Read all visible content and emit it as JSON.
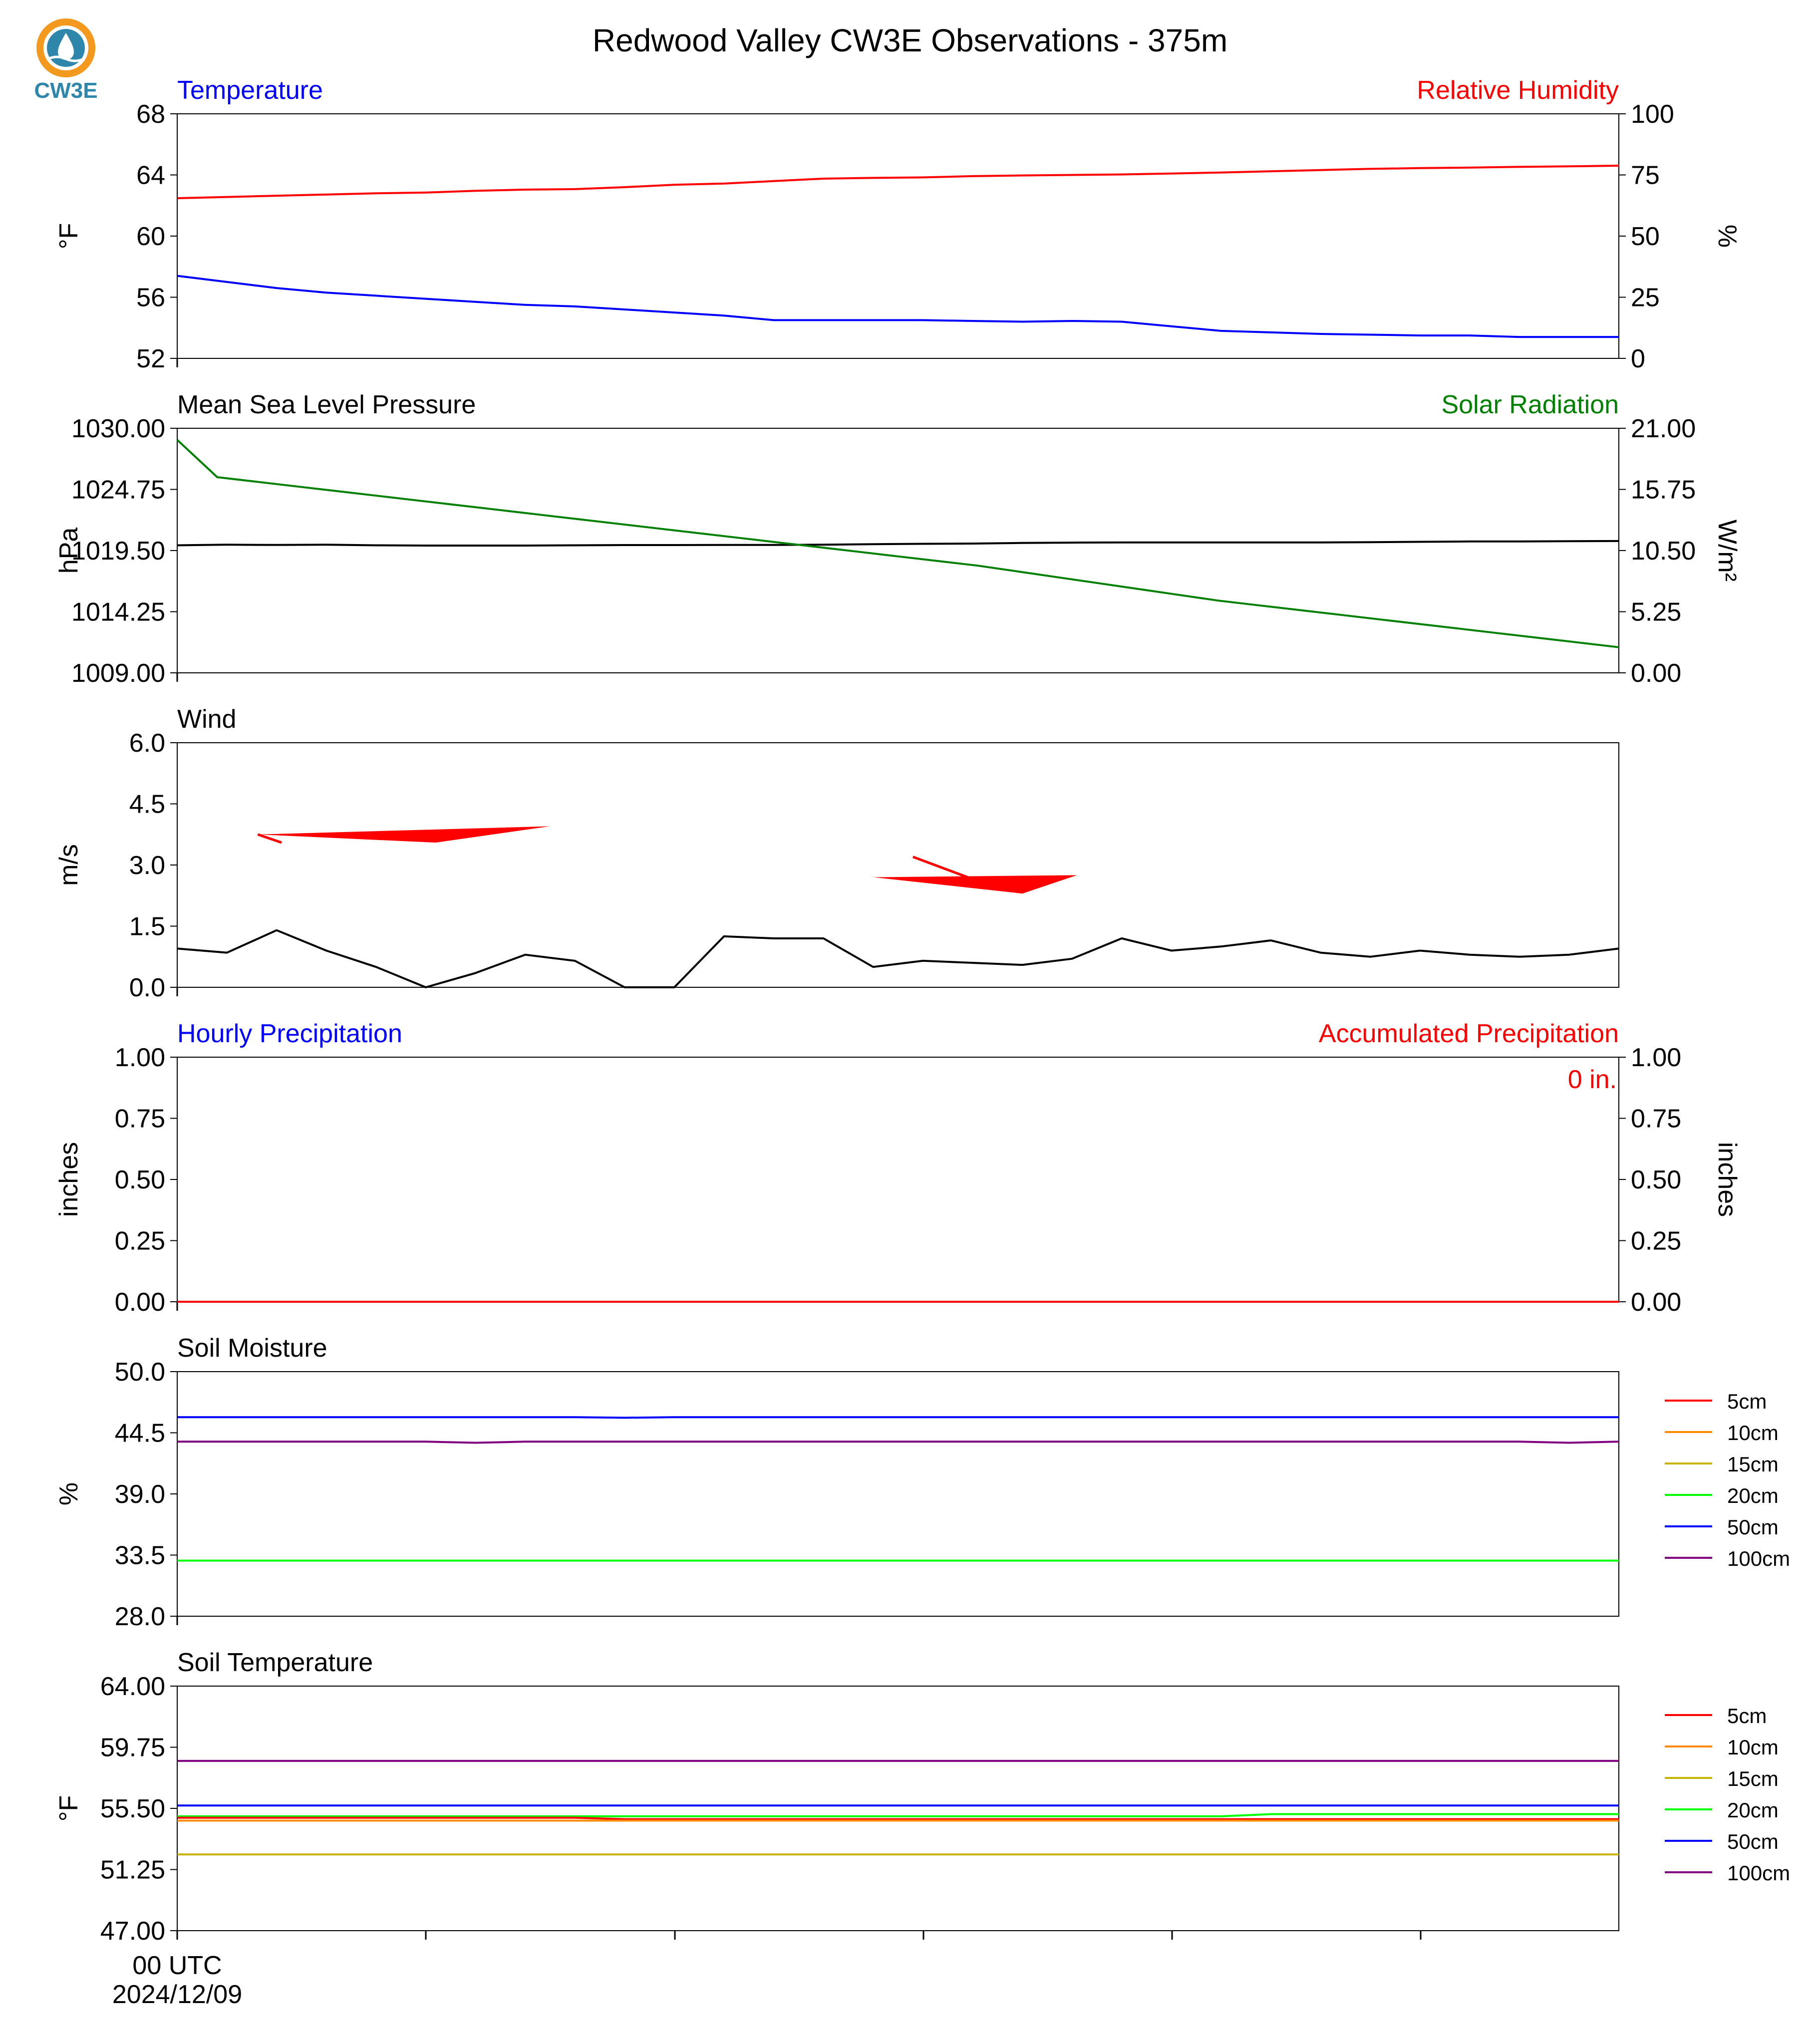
{
  "title": "Redwood Valley CW3E Observations - 375m",
  "logo": {
    "text": "CW3E",
    "icon": "cw3e-water-drop-logo",
    "colors": {
      "orange": "#F39A1E",
      "blue": "#2E86AB"
    }
  },
  "x_axis": {
    "first_tick_label_line1": "00 UTC",
    "first_tick_label_line2": "2024/12/09"
  },
  "colors": {
    "blue": "#0000FF",
    "red": "#FF0000",
    "green": "#008000",
    "black": "#000000",
    "soil": {
      "5cm": "#FF0000",
      "10cm": "#FF8C00",
      "15cm": "#C8B400",
      "20cm": "#00FF00",
      "50cm": "#0000FF",
      "100cm": "#800080"
    }
  },
  "chart_data": [
    {
      "type": "line",
      "left_title": "Temperature",
      "right_title": "Relative Humidity",
      "ylabel_left": "°F",
      "ylabel_right": "%",
      "ylim_left": [
        52,
        68
      ],
      "ylim_right": [
        0,
        100
      ],
      "yticks_left": [
        "68",
        "64",
        "60",
        "56",
        "52"
      ],
      "yticks_right": [
        "100",
        "75",
        "50",
        "25",
        "0"
      ],
      "series": [
        {
          "axis": "left",
          "color": "blue",
          "values": [
            57.4,
            57.0,
            56.6,
            56.3,
            56.1,
            55.9,
            55.7,
            55.5,
            55.4,
            55.2,
            55.0,
            54.8,
            54.5,
            54.5,
            54.5,
            54.5,
            54.45,
            54.4,
            54.45,
            54.4,
            54.1,
            53.8,
            53.7,
            53.6,
            53.55,
            53.5,
            53.5,
            53.4,
            53.4,
            53.4
          ]
        },
        {
          "axis": "right",
          "color": "red",
          "values": [
            65.5,
            66.0,
            66.5,
            67.0,
            67.5,
            67.8,
            68.5,
            69.0,
            69.2,
            70.0,
            71.0,
            71.5,
            72.5,
            73.5,
            73.8,
            74.0,
            74.5,
            74.8,
            75.0,
            75.2,
            75.6,
            76.0,
            76.5,
            77.0,
            77.5,
            77.8,
            78.0,
            78.3,
            78.5,
            78.8
          ]
        }
      ]
    },
    {
      "type": "line",
      "left_title": "Mean Sea Level Pressure",
      "right_title": "Solar Radiation",
      "ylabel_left": "hPa",
      "ylabel_right": "W/m²",
      "ylim_left": [
        1009.0,
        1030.0
      ],
      "ylim_right": [
        0.0,
        21.0
      ],
      "yticks_left": [
        "1030.00",
        "1024.75",
        "1019.50",
        "1014.25",
        "1009.00"
      ],
      "yticks_right": [
        "21.00",
        "15.75",
        "10.50",
        "5.25",
        "0.00"
      ],
      "series": [
        {
          "axis": "left",
          "color": "black",
          "values": [
            1019.95,
            1020.0,
            1019.98,
            1020.0,
            1019.95,
            1019.93,
            1019.93,
            1019.93,
            1019.95,
            1019.97,
            1019.97,
            1019.98,
            1019.98,
            1020.0,
            1020.05,
            1020.08,
            1020.1,
            1020.15,
            1020.18,
            1020.2,
            1020.2,
            1020.2,
            1020.2,
            1020.2,
            1020.22,
            1020.25,
            1020.28,
            1020.28,
            1020.3,
            1020.32
          ]
        },
        {
          "axis": "right",
          "color": "green",
          "values": [
            20.0,
            16.8,
            16.4,
            16.0,
            15.6,
            15.2,
            14.8,
            14.4,
            14.0,
            13.6,
            13.2,
            12.8,
            12.4,
            12.0,
            11.6,
            11.2,
            10.8,
            10.4,
            10.0,
            9.6,
            9.2,
            8.7,
            8.2,
            7.7,
            7.2,
            6.7,
            6.2,
            5.8,
            5.4,
            5.0,
            4.6,
            4.2,
            3.8,
            3.4,
            3.0,
            2.6,
            2.2
          ]
        }
      ]
    },
    {
      "type": "line",
      "left_title": "Wind",
      "ylabel_left": "m/s",
      "ylim_left": [
        0.0,
        6.0
      ],
      "yticks_left": [
        "6.0",
        "4.5",
        "3.0",
        "1.5",
        "0.0"
      ],
      "series": [
        {
          "axis": "left",
          "color": "black",
          "values": [
            0.95,
            0.85,
            1.4,
            0.9,
            0.5,
            0.0,
            0.35,
            0.8,
            0.65,
            0.0,
            0.0,
            1.25,
            1.2,
            1.2,
            0.5,
            0.65,
            0.6,
            0.55,
            0.7,
            1.2,
            0.9,
            1.0,
            1.15,
            0.85,
            0.75,
            0.9,
            0.8,
            0.75,
            0.8,
            0.95
          ]
        }
      ],
      "wind_barbs": [
        {
          "color": "red",
          "points": [
            [
              1.62,
              3.75
            ],
            [
              7.5,
              3.95
            ],
            [
              5.2,
              3.55
            ]
          ],
          "feather": [
            [
              1.62,
              3.75
            ],
            [
              2.1,
              3.55
            ]
          ]
        },
        {
          "color": "red",
          "points": [
            [
              14.0,
              2.7
            ],
            [
              18.1,
              2.75
            ],
            [
              17.0,
              2.3
            ]
          ],
          "feather": [
            [
              15.9,
              2.7
            ],
            [
              14.8,
              3.2
            ]
          ]
        }
      ]
    },
    {
      "type": "line",
      "left_title": "Hourly Precipitation",
      "right_title": "Accumulated Precipitation",
      "annotation": "0 in.",
      "ylabel_left": "inches",
      "ylabel_right": "inches",
      "ylim_left": [
        0.0,
        1.0
      ],
      "ylim_right": [
        0.0,
        1.0
      ],
      "yticks_left": [
        "1.00",
        "0.75",
        "0.50",
        "0.25",
        "0.00"
      ],
      "yticks_right": [
        "1.00",
        "0.75",
        "0.50",
        "0.25",
        "0.00"
      ],
      "series": [
        {
          "axis": "left",
          "color": "blue",
          "values": [
            0,
            0
          ]
        },
        {
          "axis": "right",
          "color": "red",
          "values": [
            0,
            0
          ]
        }
      ]
    },
    {
      "type": "line",
      "left_title": "Soil Moisture",
      "ylabel_left": "%",
      "ylim_left": [
        28.0,
        50.0
      ],
      "yticks_left": [
        "50.0",
        "44.5",
        "39.0",
        "33.5",
        "28.0"
      ],
      "legend": [
        "5cm",
        "10cm",
        "15cm",
        "20cm",
        "50cm",
        "100cm"
      ],
      "series": [
        {
          "name": "20cm",
          "axis": "left",
          "color": "soil.20cm",
          "values": [
            33.0,
            33.0
          ]
        },
        {
          "name": "50cm",
          "axis": "left",
          "color": "soil.50cm",
          "values": [
            45.9,
            45.9,
            45.9,
            45.9,
            45.9,
            45.9,
            45.9,
            45.9,
            45.9,
            45.85,
            45.9,
            45.9,
            45.9,
            45.9,
            45.9,
            45.9,
            45.9,
            45.9,
            45.9,
            45.9,
            45.9,
            45.9,
            45.9,
            45.9,
            45.9,
            45.9,
            45.9,
            45.9,
            45.9,
            45.9
          ]
        },
        {
          "name": "100cm",
          "axis": "left",
          "color": "soil.100cm",
          "values": [
            43.7,
            43.7,
            43.7,
            43.7,
            43.7,
            43.7,
            43.6,
            43.7,
            43.7,
            43.7,
            43.7,
            43.7,
            43.7,
            43.7,
            43.7,
            43.7,
            43.7,
            43.7,
            43.7,
            43.7,
            43.7,
            43.7,
            43.7,
            43.7,
            43.7,
            43.7,
            43.7,
            43.7,
            43.6,
            43.7
          ]
        }
      ]
    },
    {
      "type": "line",
      "left_title": "Soil Temperature",
      "ylabel_left": "°F",
      "ylim_left": [
        47.0,
        64.0
      ],
      "yticks_left": [
        "64.00",
        "59.75",
        "55.50",
        "51.25",
        "47.00"
      ],
      "legend": [
        "5cm",
        "10cm",
        "15cm",
        "20cm",
        "50cm",
        "100cm"
      ],
      "series": [
        {
          "name": "100cm",
          "axis": "left",
          "color": "soil.100cm",
          "values": [
            58.8,
            58.8
          ]
        },
        {
          "name": "50cm",
          "axis": "left",
          "color": "soil.50cm",
          "values": [
            55.7,
            55.7
          ]
        },
        {
          "name": "20cm",
          "axis": "left",
          "color": "soil.20cm",
          "values": [
            54.95,
            54.95,
            54.95,
            54.95,
            54.95,
            54.95,
            54.95,
            54.95,
            54.95,
            54.95,
            54.95,
            54.95,
            54.95,
            54.95,
            54.95,
            54.95,
            54.95,
            54.95,
            54.95,
            54.95,
            54.95,
            54.95,
            55.1,
            55.1,
            55.1,
            55.1,
            55.1,
            55.1,
            55.1,
            55.1
          ]
        },
        {
          "name": "5cm",
          "axis": "left",
          "color": "soil.5cm",
          "values": [
            54.85,
            54.85,
            54.85,
            54.85,
            54.85,
            54.85,
            54.85,
            54.85,
            54.85,
            54.75,
            54.75,
            54.75,
            54.75,
            54.75,
            54.75,
            54.75,
            54.75,
            54.75,
            54.75,
            54.75,
            54.75,
            54.75,
            54.75,
            54.75,
            54.75,
            54.75,
            54.75,
            54.75,
            54.75,
            54.75
          ]
        },
        {
          "name": "10cm",
          "axis": "left",
          "color": "soil.10cm",
          "values": [
            54.65,
            54.65
          ]
        },
        {
          "name": "15cm",
          "axis": "left",
          "color": "soil.15cm",
          "values": [
            52.3,
            52.3
          ]
        }
      ]
    }
  ]
}
